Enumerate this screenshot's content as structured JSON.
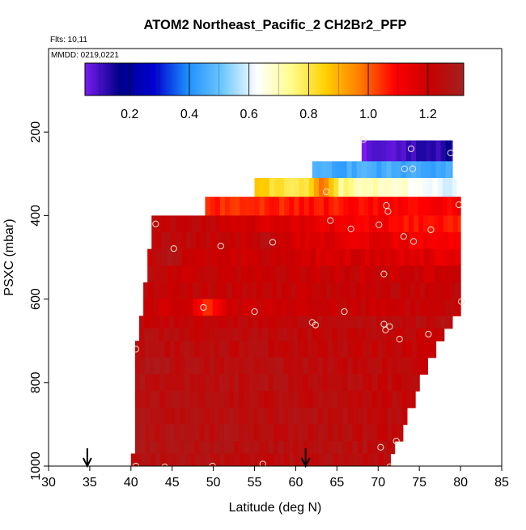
{
  "chart_data": {
    "type": "heatmap",
    "title": "ATOM2 Northeast_Pacific_2 CH2Br2_PFP",
    "flights_text": "Flts: 10,11",
    "mmdd_text": "MMDD: 0219,0221",
    "xlabel": "Latitude (deg N)",
    "ylabel": "PSXC (mbar)",
    "xlim": [
      30,
      85
    ],
    "ylim": [
      1000,
      0
    ],
    "x_ticks": [
      30,
      35,
      40,
      45,
      50,
      55,
      60,
      65,
      70,
      75,
      80,
      85
    ],
    "y_ticks": [
      200,
      400,
      600,
      800,
      1000
    ],
    "colorbar": {
      "range": [
        0.05,
        1.32
      ],
      "ticks": [
        0.2,
        0.4,
        0.6,
        0.8,
        1.0,
        1.2
      ],
      "tick_labels": [
        "0.2",
        "0.4",
        "0.6",
        "0.8",
        "1.0",
        "1.2"
      ],
      "color_stops": [
        "#7a1cf0",
        "#00008a",
        "#0000d0",
        "#1e90ff",
        "#6ec8ff",
        "#ffffff",
        "#fffc8c",
        "#ffd000",
        "#ff7a00",
        "#ff0000",
        "#c80000",
        "#a52020"
      ]
    },
    "bands": [
      {
        "p": [
          220,
          270
        ],
        "lat": [
          68,
          79
        ],
        "v": [
          0.05,
          0.15
        ]
      },
      {
        "p": [
          270,
          310
        ],
        "lat": [
          62,
          79
        ],
        "v": [
          0.45,
          0.45
        ]
      },
      {
        "p": [
          310,
          355
        ],
        "lat": [
          55,
          79.5
        ],
        "v": [
          0.85,
          0.6
        ]
      },
      {
        "p": [
          355,
          400
        ],
        "lat": [
          49,
          80
        ],
        "v": [
          1.05,
          1.1
        ]
      },
      {
        "p": [
          400,
          440
        ],
        "lat": [
          42.5,
          80
        ],
        "v": [
          1.25,
          1.05
        ]
      },
      {
        "p": [
          440,
          480
        ],
        "lat": [
          42.5,
          80
        ],
        "v": [
          1.25,
          1.1
        ]
      },
      {
        "p": [
          480,
          520
        ],
        "lat": [
          42,
          80
        ],
        "v": [
          1.22,
          1.15
        ]
      },
      {
        "p": [
          520,
          560
        ],
        "lat": [
          42,
          80
        ],
        "v": [
          1.22,
          1.2
        ]
      },
      {
        "p": [
          560,
          600
        ],
        "lat": [
          41.5,
          80
        ],
        "v": [
          1.22,
          1.22
        ]
      },
      {
        "p": [
          600,
          640
        ],
        "lat": [
          41.5,
          80
        ],
        "v": [
          1.2,
          1.22
        ]
      },
      {
        "p": [
          640,
          670
        ],
        "lat": [
          41,
          79
        ],
        "v": [
          1.22,
          1.25
        ]
      },
      {
        "p": [
          670,
          700
        ],
        "lat": [
          41,
          78
        ],
        "v": [
          1.25,
          1.22
        ]
      },
      {
        "p": [
          700,
          740
        ],
        "lat": [
          40.5,
          77
        ],
        "v": [
          1.25,
          1.22
        ]
      },
      {
        "p": [
          740,
          780
        ],
        "lat": [
          40.5,
          76
        ],
        "v": [
          1.27,
          1.23
        ]
      },
      {
        "p": [
          780,
          820
        ],
        "lat": [
          40.5,
          75
        ],
        "v": [
          1.27,
          1.23
        ]
      },
      {
        "p": [
          820,
          860
        ],
        "lat": [
          40.5,
          74.5
        ],
        "v": [
          1.26,
          1.23
        ]
      },
      {
        "p": [
          860,
          900
        ],
        "lat": [
          40.5,
          73.5
        ],
        "v": [
          1.27,
          1.24
        ]
      },
      {
        "p": [
          900,
          940
        ],
        "lat": [
          40.5,
          73
        ],
        "v": [
          1.27,
          1.24
        ]
      },
      {
        "p": [
          940,
          970
        ],
        "lat": [
          40.5,
          72
        ],
        "v": [
          1.27,
          1.25
        ]
      },
      {
        "p": [
          970,
          1010
        ],
        "lat": [
          40,
          71.5
        ],
        "v": [
          1.26,
          1.24
        ]
      }
    ],
    "hot_spots": [
      {
        "lat": 49,
        "p": 620,
        "v": 1.03
      },
      {
        "lat": 63,
        "p": 340,
        "v": 1.05
      },
      {
        "lat": 44.5,
        "p": 490,
        "v": 1.31
      },
      {
        "lat": 56,
        "p": 470,
        "v": 1.3
      }
    ],
    "points": [
      {
        "lat": 68.2,
        "p": 218
      },
      {
        "lat": 74.0,
        "p": 240
      },
      {
        "lat": 78.8,
        "p": 250
      },
      {
        "lat": 73.2,
        "p": 288
      },
      {
        "lat": 74.2,
        "p": 288
      },
      {
        "lat": 63.7,
        "p": 343
      },
      {
        "lat": 71.0,
        "p": 376
      },
      {
        "lat": 71.2,
        "p": 390
      },
      {
        "lat": 79.8,
        "p": 374
      },
      {
        "lat": 43.0,
        "p": 420
      },
      {
        "lat": 64.2,
        "p": 412
      },
      {
        "lat": 66.7,
        "p": 432
      },
      {
        "lat": 70.1,
        "p": 422
      },
      {
        "lat": 76.4,
        "p": 434
      },
      {
        "lat": 73.1,
        "p": 450
      },
      {
        "lat": 74.3,
        "p": 462
      },
      {
        "lat": 45.2,
        "p": 479
      },
      {
        "lat": 50.9,
        "p": 473
      },
      {
        "lat": 57.2,
        "p": 464
      },
      {
        "lat": 70.7,
        "p": 540
      },
      {
        "lat": 80.1,
        "p": 606
      },
      {
        "lat": 48.8,
        "p": 620
      },
      {
        "lat": 55.0,
        "p": 630
      },
      {
        "lat": 65.9,
        "p": 630
      },
      {
        "lat": 62.0,
        "p": 656
      },
      {
        "lat": 62.4,
        "p": 662
      },
      {
        "lat": 70.7,
        "p": 660
      },
      {
        "lat": 71.4,
        "p": 666
      },
      {
        "lat": 70.9,
        "p": 674
      },
      {
        "lat": 72.6,
        "p": 696
      },
      {
        "lat": 76.1,
        "p": 684
      },
      {
        "lat": 40.6,
        "p": 720
      },
      {
        "lat": 70.3,
        "p": 955
      },
      {
        "lat": 72.2,
        "p": 940
      },
      {
        "lat": 40.6,
        "p": 1000
      },
      {
        "lat": 44.1,
        "p": 1002
      },
      {
        "lat": 49.9,
        "p": 1000
      },
      {
        "lat": 56.0,
        "p": 995
      },
      {
        "lat": 71.4,
        "p": 1002
      }
    ],
    "arrows_lat": [
      34.7,
      61.2
    ]
  }
}
